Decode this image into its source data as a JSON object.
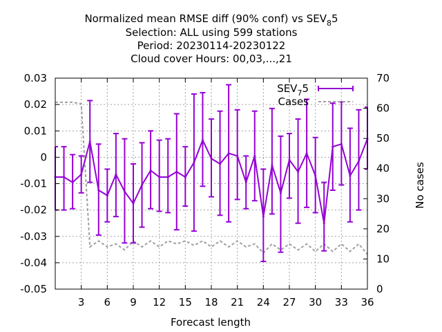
{
  "chart_data": {
    "type": "line",
    "title_lines": [
      "Normalized mean RMSE diff (90% conf) vs SEV",
      "Selection: ALL using   599 stations",
      "Period: 20230114-20230122",
      "Cloud cover   Hours:  00,03,...,21"
    ],
    "title_sub": "8",
    "title_tail": "5",
    "xlabel": "Forecast length",
    "y2label": "No cases",
    "xlim": [
      0,
      36
    ],
    "ylim": [
      -0.05,
      0.03
    ],
    "y2lim": [
      0,
      70
    ],
    "x_ticks": [
      "3",
      "6",
      "9",
      "12",
      "15",
      "18",
      "21",
      "24",
      "27",
      "30",
      "33",
      "36"
    ],
    "y_ticks": [
      "0.03",
      "0.02",
      "0.01",
      "0",
      "-0.01",
      "-0.02",
      "-0.03",
      "-0.04",
      "-0.05"
    ],
    "y2_ticks": [
      "70",
      "60",
      "50",
      "40",
      "30",
      "20",
      "10",
      "0"
    ],
    "grid": true,
    "legend_position": "top-right",
    "series": [
      {
        "name": "SEV",
        "name_sub": "7",
        "name_tail": "5",
        "color": "#9400d3",
        "axis": "left",
        "x": [
          0,
          1,
          2,
          3,
          4,
          5,
          6,
          7,
          8,
          9,
          10,
          11,
          12,
          13,
          14,
          15,
          16,
          17,
          18,
          19,
          20,
          21,
          22,
          23,
          24,
          25,
          26,
          27,
          28,
          29,
          30,
          31,
          32,
          33,
          34,
          35,
          36
        ],
        "y": [
          -0.0075,
          -0.0075,
          -0.0095,
          -0.0065,
          0.006,
          -0.0125,
          -0.0145,
          -0.0065,
          -0.013,
          -0.0175,
          -0.0105,
          -0.005,
          -0.0075,
          -0.0075,
          -0.0055,
          -0.0075,
          -0.002,
          0.0065,
          -0.0005,
          -0.0025,
          0.0015,
          0.0005,
          -0.0095,
          0.0005,
          -0.0225,
          -0.003,
          -0.0135,
          -0.001,
          -0.0055,
          0.0015,
          -0.007,
          -0.025,
          0.004,
          0.005,
          -0.007,
          -0.0015,
          0.007
        ],
        "err_low": [
          -0.02,
          -0.02,
          -0.0195,
          -0.0135,
          -0.0095,
          -0.0295,
          -0.0245,
          -0.0225,
          -0.0325,
          -0.0325,
          -0.0265,
          -0.0195,
          -0.0205,
          -0.021,
          -0.0275,
          -0.0185,
          -0.028,
          -0.011,
          -0.015,
          -0.022,
          -0.0245,
          -0.016,
          -0.0195,
          -0.0165,
          -0.0395,
          -0.0215,
          -0.036,
          -0.0155,
          -0.025,
          -0.019,
          -0.021,
          -0.0355,
          -0.0125,
          -0.0105,
          -0.0245,
          -0.02,
          -0.0045
        ],
        "err_high": [
          0.004,
          0.004,
          0.001,
          0.0005,
          0.0215,
          0.005,
          -0.0045,
          0.009,
          0.007,
          -0.0025,
          0.0055,
          0.01,
          0.0065,
          0.007,
          0.0165,
          0.004,
          0.024,
          0.0245,
          0.0145,
          0.0175,
          0.0275,
          0.018,
          0.0005,
          0.0175,
          -0.0045,
          0.0185,
          0.008,
          0.009,
          0.0145,
          0.022,
          0.0075,
          -0.0095,
          0.0205,
          0.021,
          0.011,
          0.018,
          0.019
        ]
      },
      {
        "name": "Cases",
        "color": "#a0a0a0",
        "axis": "right",
        "x": [
          0,
          1,
          2,
          3,
          4,
          5,
          6,
          7,
          8,
          9,
          10,
          11,
          12,
          13,
          14,
          15,
          16,
          17,
          18,
          19,
          20,
          21,
          22,
          23,
          24,
          25,
          26,
          27,
          28,
          29,
          30,
          31,
          32,
          33,
          34,
          35,
          36
        ],
        "y": [
          62,
          62,
          62,
          61.5,
          14,
          16,
          14,
          15,
          13,
          16,
          14,
          16,
          14,
          16,
          15,
          16,
          14.5,
          16,
          14,
          16,
          14,
          16,
          14,
          15,
          12,
          15,
          13,
          15,
          13,
          15,
          12.5,
          15,
          12.5,
          15,
          12.5,
          15,
          11.5
        ]
      }
    ]
  }
}
